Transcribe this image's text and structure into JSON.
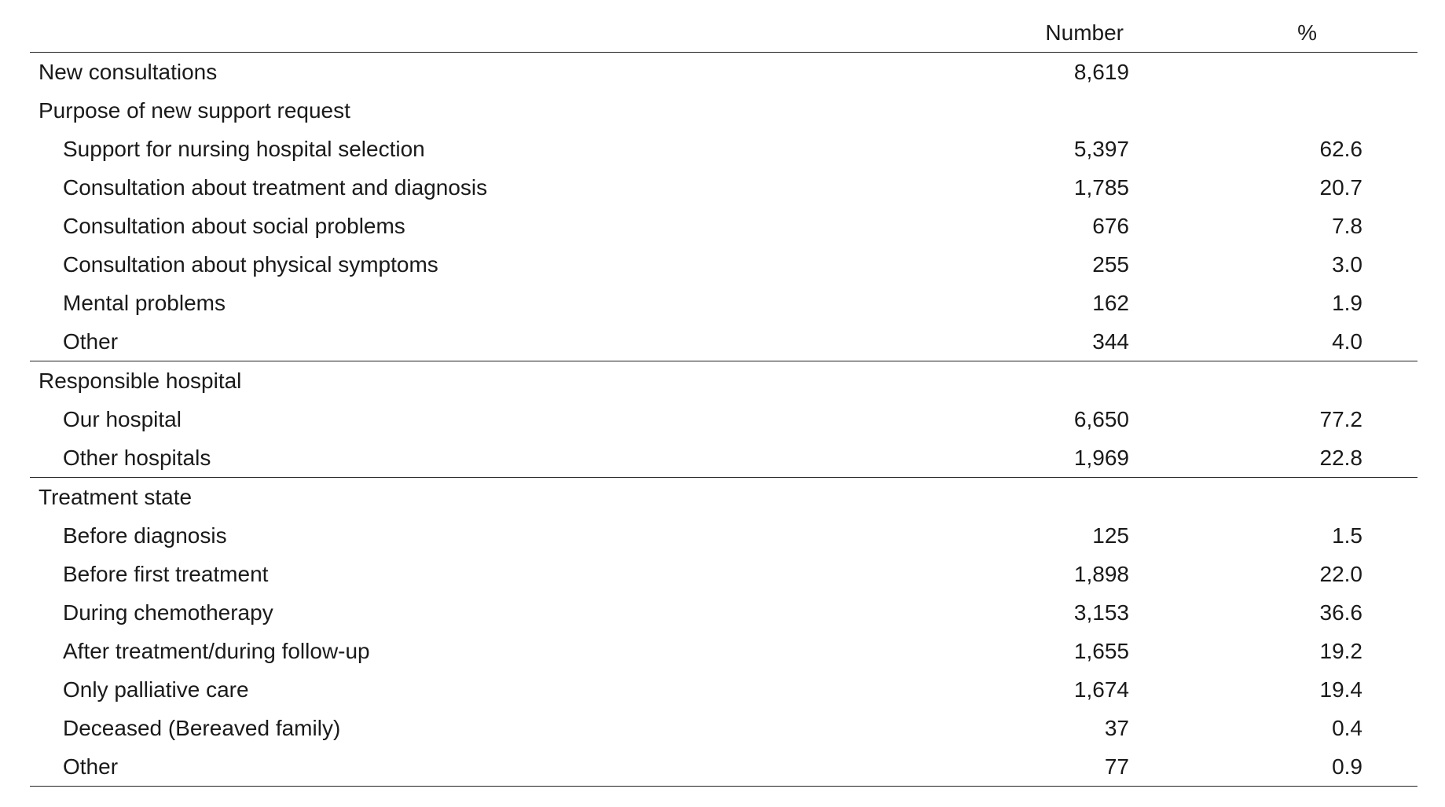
{
  "table": {
    "header": {
      "label": "",
      "number": "Number",
      "percent": "%"
    },
    "rows": [
      {
        "label": "New consultations",
        "number": "8,619",
        "percent": ""
      },
      {
        "label": "Purpose of new support request",
        "number": "",
        "percent": ""
      },
      {
        "label": "Support for nursing hospital selection",
        "number": "5,397",
        "percent": "62.6"
      },
      {
        "label": "Consultation about treatment and diagnosis",
        "number": "1,785",
        "percent": "20.7"
      },
      {
        "label": "Consultation about social problems",
        "number": "676",
        "percent": "7.8"
      },
      {
        "label": "Consultation about physical symptoms",
        "number": "255",
        "percent": "3.0"
      },
      {
        "label": "Mental problems",
        "number": "162",
        "percent": "1.9"
      },
      {
        "label": "Other",
        "number": "344",
        "percent": "4.0"
      },
      {
        "label": "Responsible hospital",
        "number": "",
        "percent": ""
      },
      {
        "label": "Our hospital",
        "number": "6,650",
        "percent": "77.2"
      },
      {
        "label": "Other hospitals",
        "number": "1,969",
        "percent": "22.8"
      },
      {
        "label": "Treatment state",
        "number": "",
        "percent": ""
      },
      {
        "label": "Before diagnosis",
        "number": "125",
        "percent": "1.5"
      },
      {
        "label": "Before first treatment",
        "number": "1,898",
        "percent": "22.0"
      },
      {
        "label": "During chemotherapy",
        "number": "3,153",
        "percent": "36.6"
      },
      {
        "label": "After treatment/during follow-up",
        "number": "1,655",
        "percent": "19.2"
      },
      {
        "label": "Only palliative care",
        "number": "1,674",
        "percent": "19.4"
      },
      {
        "label": "Deceased (Bereaved family)",
        "number": "37",
        "percent": "0.4"
      },
      {
        "label": "Other",
        "number": "77",
        "percent": "0.9"
      }
    ]
  }
}
